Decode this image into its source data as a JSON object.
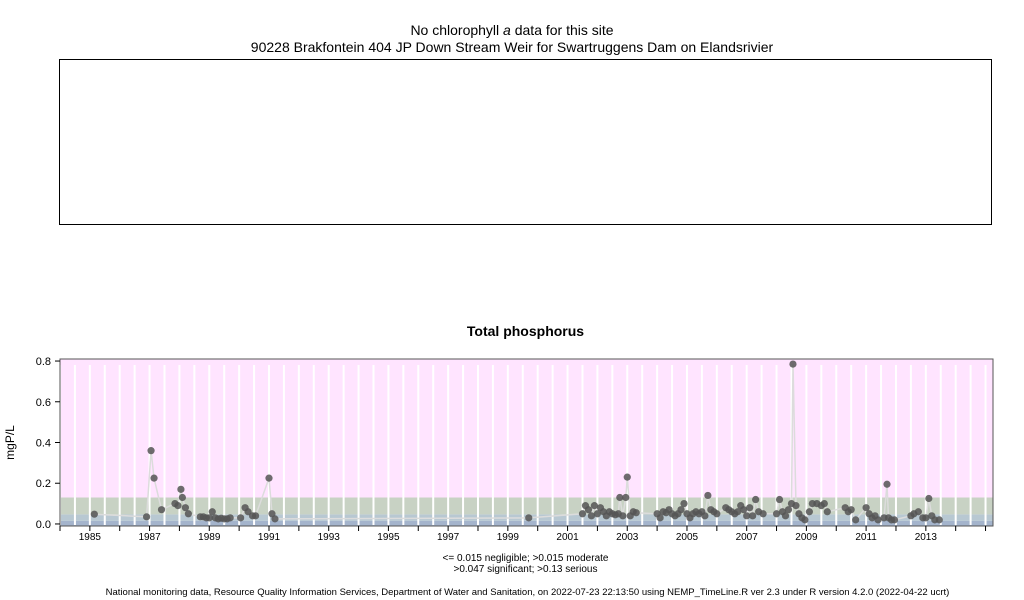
{
  "header": {
    "line1_prefix": "No chlorophyll ",
    "line1_italic": "a",
    "line1_suffix": " data for this site",
    "line2": "90228 Brakfontein 404 JP Down Stream Weir for Swartruggens Dam on Elandsrivier"
  },
  "footer": {
    "note_line1": "<= 0.015 negligible; >0.015 moderate",
    "note_line2": ">0.047 significant; >0.13 serious",
    "credit": "National monitoring data, Resource Quality Information Services, Department of Water and Sanitation, on 2022-07-23 22:13:50 using NEMP_TimeLine.R ver 2.3 under R version 4.2.0 (2022-04-22 ucrt)"
  },
  "colors": {
    "serious": "#ffe4ff",
    "significant": "#c8d2c4",
    "moderate": "#b8c8d2",
    "negligible": "#a4b4cc",
    "points": "#555555",
    "line": "#dcdcdc",
    "gridline": "#ffffff"
  },
  "chart_data": {
    "type": "scatter",
    "title": "Total phosphorus",
    "xlabel": "",
    "ylabel": "mgP/L",
    "xlim": [
      1984.0,
      2015.25
    ],
    "ylim": [
      -0.01,
      0.81
    ],
    "x_ticks": [
      1985,
      1987,
      1989,
      1991,
      1993,
      1995,
      1997,
      1999,
      2001,
      2003,
      2005,
      2007,
      2009,
      2011,
      2013
    ],
    "y_ticks": [
      "0.0",
      "0.2",
      "0.4",
      "0.6",
      "0.8"
    ],
    "grid": true,
    "thresholds": [
      {
        "label": "negligible",
        "max": 0.015
      },
      {
        "label": "moderate",
        "max": 0.047
      },
      {
        "label": "significant",
        "max": 0.13
      },
      {
        "label": "serious",
        "max": 0.81
      }
    ],
    "points": [
      [
        1985.15,
        0.048
      ],
      [
        1986.9,
        0.035
      ],
      [
        1987.05,
        0.36
      ],
      [
        1987.15,
        0.225
      ],
      [
        1987.4,
        0.07
      ],
      [
        1987.85,
        0.1
      ],
      [
        1987.95,
        0.09
      ],
      [
        1988.05,
        0.17
      ],
      [
        1988.1,
        0.13
      ],
      [
        1988.2,
        0.08
      ],
      [
        1988.3,
        0.05
      ],
      [
        1988.7,
        0.035
      ],
      [
        1988.8,
        0.035
      ],
      [
        1988.9,
        0.03
      ],
      [
        1989.0,
        0.03
      ],
      [
        1989.1,
        0.06
      ],
      [
        1989.2,
        0.03
      ],
      [
        1989.3,
        0.025
      ],
      [
        1989.4,
        0.028
      ],
      [
        1989.5,
        0.025
      ],
      [
        1989.6,
        0.025
      ],
      [
        1989.7,
        0.03
      ],
      [
        1990.05,
        0.03
      ],
      [
        1990.2,
        0.08
      ],
      [
        1990.3,
        0.06
      ],
      [
        1990.45,
        0.04
      ],
      [
        1990.55,
        0.04
      ],
      [
        1991.0,
        0.225
      ],
      [
        1991.1,
        0.05
      ],
      [
        1991.2,
        0.025
      ],
      [
        1999.7,
        0.03
      ],
      [
        2001.5,
        0.05
      ],
      [
        2001.6,
        0.09
      ],
      [
        2001.7,
        0.07
      ],
      [
        2001.8,
        0.04
      ],
      [
        2001.9,
        0.09
      ],
      [
        2002.0,
        0.05
      ],
      [
        2002.1,
        0.08
      ],
      [
        2002.2,
        0.06
      ],
      [
        2002.3,
        0.04
      ],
      [
        2002.4,
        0.06
      ],
      [
        2002.5,
        0.05
      ],
      [
        2002.6,
        0.045
      ],
      [
        2002.7,
        0.05
      ],
      [
        2002.75,
        0.13
      ],
      [
        2002.85,
        0.04
      ],
      [
        2002.95,
        0.13
      ],
      [
        2003.0,
        0.23
      ],
      [
        2003.1,
        0.04
      ],
      [
        2003.2,
        0.06
      ],
      [
        2003.3,
        0.055
      ],
      [
        2004.0,
        0.05
      ],
      [
        2004.1,
        0.03
      ],
      [
        2004.2,
        0.06
      ],
      [
        2004.3,
        0.055
      ],
      [
        2004.4,
        0.07
      ],
      [
        2004.5,
        0.05
      ],
      [
        2004.6,
        0.04
      ],
      [
        2004.7,
        0.05
      ],
      [
        2004.8,
        0.07
      ],
      [
        2004.9,
        0.1
      ],
      [
        2005.0,
        0.05
      ],
      [
        2005.1,
        0.03
      ],
      [
        2005.2,
        0.05
      ],
      [
        2005.3,
        0.06
      ],
      [
        2005.4,
        0.05
      ],
      [
        2005.5,
        0.06
      ],
      [
        2005.6,
        0.04
      ],
      [
        2005.7,
        0.14
      ],
      [
        2005.8,
        0.07
      ],
      [
        2005.9,
        0.06
      ],
      [
        2006.0,
        0.05
      ],
      [
        2006.3,
        0.08
      ],
      [
        2006.4,
        0.07
      ],
      [
        2006.5,
        0.06
      ],
      [
        2006.6,
        0.05
      ],
      [
        2006.7,
        0.06
      ],
      [
        2006.8,
        0.09
      ],
      [
        2006.9,
        0.07
      ],
      [
        2007.0,
        0.04
      ],
      [
        2007.1,
        0.08
      ],
      [
        2007.2,
        0.04
      ],
      [
        2007.3,
        0.12
      ],
      [
        2007.4,
        0.06
      ],
      [
        2007.55,
        0.05
      ],
      [
        2008.0,
        0.05
      ],
      [
        2008.1,
        0.12
      ],
      [
        2008.2,
        0.06
      ],
      [
        2008.3,
        0.04
      ],
      [
        2008.4,
        0.07
      ],
      [
        2008.5,
        0.1
      ],
      [
        2008.55,
        0.785
      ],
      [
        2008.65,
        0.09
      ],
      [
        2008.75,
        0.05
      ],
      [
        2008.85,
        0.03
      ],
      [
        2008.95,
        0.02
      ],
      [
        2009.1,
        0.06
      ],
      [
        2009.2,
        0.1
      ],
      [
        2009.35,
        0.1
      ],
      [
        2009.5,
        0.09
      ],
      [
        2009.6,
        0.1
      ],
      [
        2009.7,
        0.06
      ],
      [
        2010.3,
        0.08
      ],
      [
        2010.4,
        0.06
      ],
      [
        2010.5,
        0.07
      ],
      [
        2010.65,
        0.02
      ],
      [
        2011.0,
        0.08
      ],
      [
        2011.1,
        0.05
      ],
      [
        2011.2,
        0.03
      ],
      [
        2011.3,
        0.04
      ],
      [
        2011.4,
        0.02
      ],
      [
        2011.6,
        0.03
      ],
      [
        2011.7,
        0.195
      ],
      [
        2011.75,
        0.03
      ],
      [
        2011.85,
        0.02
      ],
      [
        2011.95,
        0.02
      ],
      [
        2012.5,
        0.04
      ],
      [
        2012.6,
        0.05
      ],
      [
        2012.75,
        0.06
      ],
      [
        2012.9,
        0.03
      ],
      [
        2013.0,
        0.03
      ],
      [
        2013.1,
        0.125
      ],
      [
        2013.2,
        0.04
      ],
      [
        2013.3,
        0.02
      ],
      [
        2013.45,
        0.02
      ]
    ]
  }
}
